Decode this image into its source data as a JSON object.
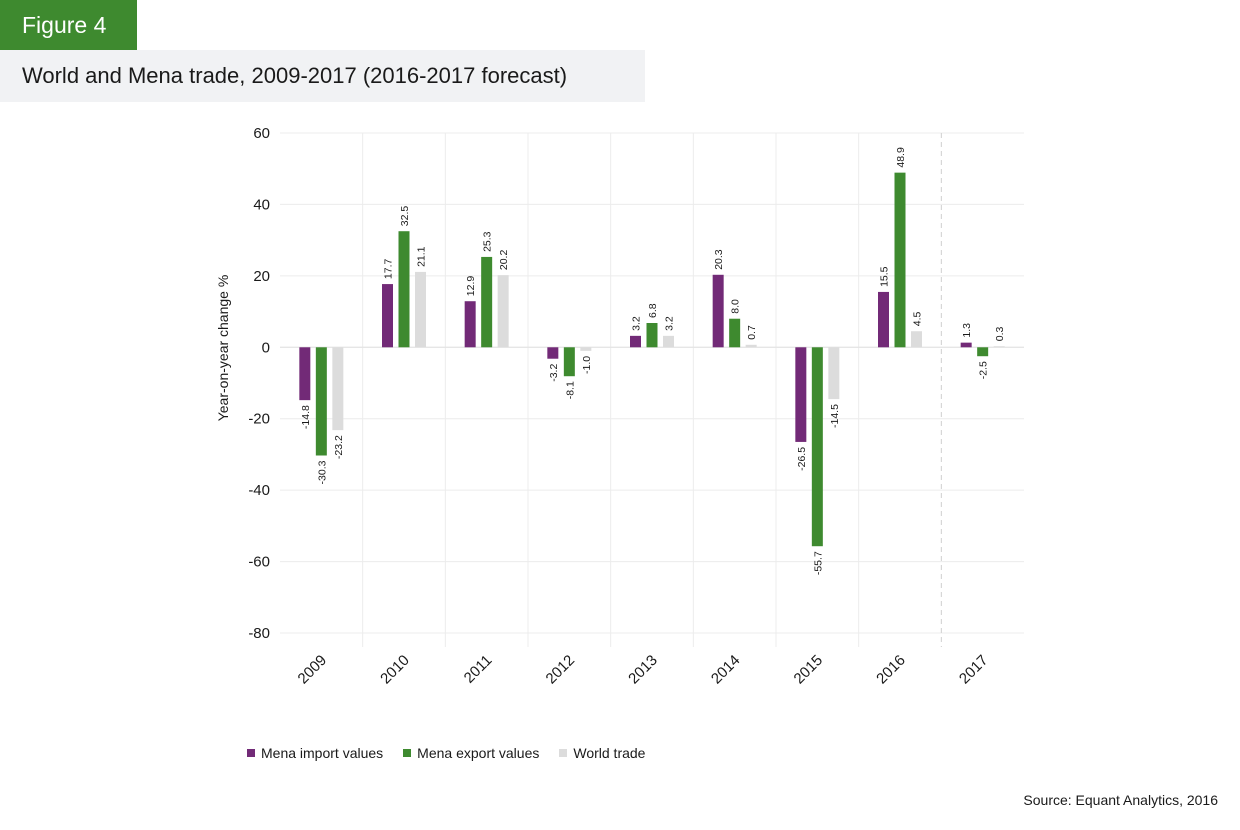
{
  "figure_label": "Figure 4",
  "colors": {
    "accent": "#3e8a2f",
    "title_bg": "#f1f2f4",
    "import": "#722a77",
    "export": "#3e8a2f",
    "world": "#dcdcdc"
  },
  "source": "Source: Equant Analytics, 2016",
  "chart_data": {
    "type": "bar",
    "title": "World and Mena trade, 2009-2017 (2016-2017 forecast)",
    "xlabel": "",
    "ylabel": "Year-on-year change %",
    "ylim": [
      -80,
      60
    ],
    "yticks": [
      60,
      40,
      20,
      0,
      -20,
      -40,
      -60,
      -80
    ],
    "ytick_labels": [
      "60",
      "40",
      "20",
      "0",
      "-20",
      "-40",
      "-60",
      "-80"
    ],
    "grid": true,
    "forecast_divider_after": "2016",
    "categories": [
      "2009",
      "2010",
      "2011",
      "2012",
      "2013",
      "2014",
      "2015",
      "2016",
      "2017"
    ],
    "series": [
      {
        "name": "Mena import values",
        "values": [
          -14.8,
          17.7,
          12.9,
          -3.2,
          3.2,
          20.3,
          -26.5,
          15.5,
          1.3
        ],
        "labels": [
          "-14.8",
          "17.7",
          "12.9",
          "-3.2",
          "3.2",
          "20.3",
          "-26.5",
          "15.5",
          "1.3"
        ]
      },
      {
        "name": "Mena export values",
        "values": [
          -30.3,
          32.5,
          25.3,
          -8.1,
          6.8,
          8.0,
          -55.7,
          48.9,
          -2.5
        ],
        "labels": [
          "-30.3",
          "32.5",
          "25.3",
          "-8.1",
          "6.8",
          "8.0",
          "-55.7",
          "48.9",
          "-2.5"
        ]
      },
      {
        "name": "World trade",
        "values": [
          -23.2,
          21.1,
          20.2,
          -1.0,
          3.2,
          0.7,
          -14.5,
          4.5,
          0.3
        ],
        "labels": [
          "-23.2",
          "21.1",
          "20.2",
          "-1.0",
          "3.2",
          "0.7",
          "-14.5",
          "4.5",
          "0.3"
        ]
      }
    ],
    "legend_position": "bottom-left"
  }
}
